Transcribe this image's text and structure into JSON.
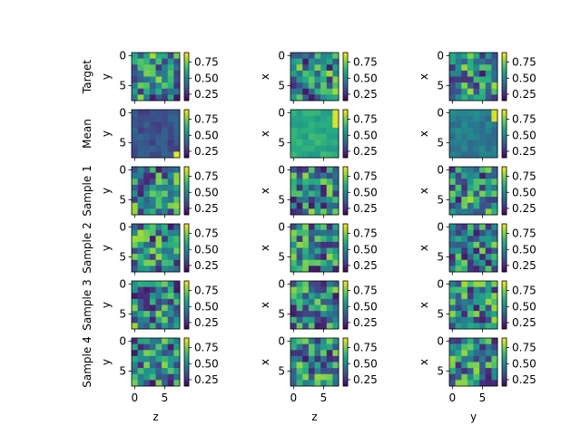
{
  "chart_data": {
    "type": "heatmap",
    "colormap": "viridis",
    "color_range": [
      0.15,
      0.9
    ],
    "grid_size": 8,
    "row_labels": [
      "Target",
      "Mean",
      "Sample 1",
      "Sample 2",
      "Sample 3",
      "Sample 4"
    ],
    "column_ylabels": [
      "y",
      "x",
      "x"
    ],
    "column_xlabels": [
      "z",
      "z",
      "y"
    ],
    "y_ticks": [
      "0",
      "5"
    ],
    "x_ticks": [
      "0",
      "5"
    ],
    "colorbar_ticks": [
      "0.75",
      "0.50",
      "0.25"
    ],
    "colorbar_tick_values": [
      0.75,
      0.5,
      0.25
    ]
  }
}
